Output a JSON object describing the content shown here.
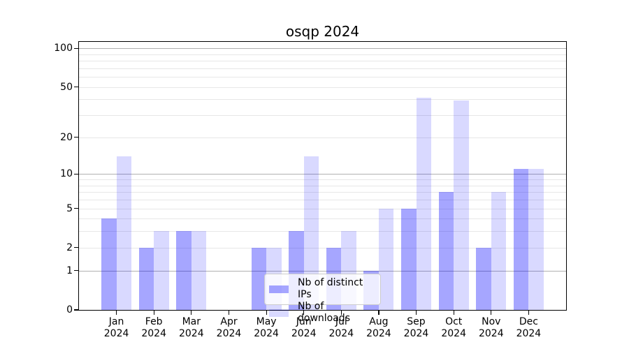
{
  "chart_data": {
    "type": "bar",
    "title": "osqp 2024",
    "x": {
      "months": [
        "Jan",
        "Feb",
        "Mar",
        "Apr",
        "May",
        "Jun",
        "Jul",
        "Aug",
        "Sep",
        "Oct",
        "Nov",
        "Dec"
      ],
      "year": "2024"
    },
    "series": [
      {
        "name": "Nb of distinct IPs",
        "color": "rgba(0,0,255,0.35)",
        "color_blended_hex": "#a6a6ff",
        "values": [
          4,
          2,
          3,
          0,
          2,
          3,
          2,
          1,
          5,
          7,
          2,
          11
        ]
      },
      {
        "name": "Nb of downloads",
        "color": "rgba(0,0,255,0.15)",
        "color_blended_hex": "#d9d9ff",
        "values": [
          14,
          3,
          3,
          0,
          2,
          14,
          3,
          5,
          41,
          39,
          7,
          11
        ]
      }
    ],
    "y_axis": {
      "scale": "log1p",
      "top_value": 112,
      "labeled_ticks": [
        0,
        1,
        2,
        5,
        10,
        20,
        50,
        100
      ],
      "major_gridlines": [
        1,
        10,
        100
      ],
      "minor_gridlines": [
        2,
        3,
        4,
        5,
        6,
        7,
        8,
        9,
        20,
        30,
        40,
        50,
        60,
        70,
        80,
        90
      ]
    },
    "legend": {
      "position": "lower center"
    },
    "grid": true
  },
  "colors": {
    "major_grid": "#b0b0b0",
    "minor_grid": "#e7e7e7",
    "spine": "#000000",
    "background": "#ffffff"
  }
}
